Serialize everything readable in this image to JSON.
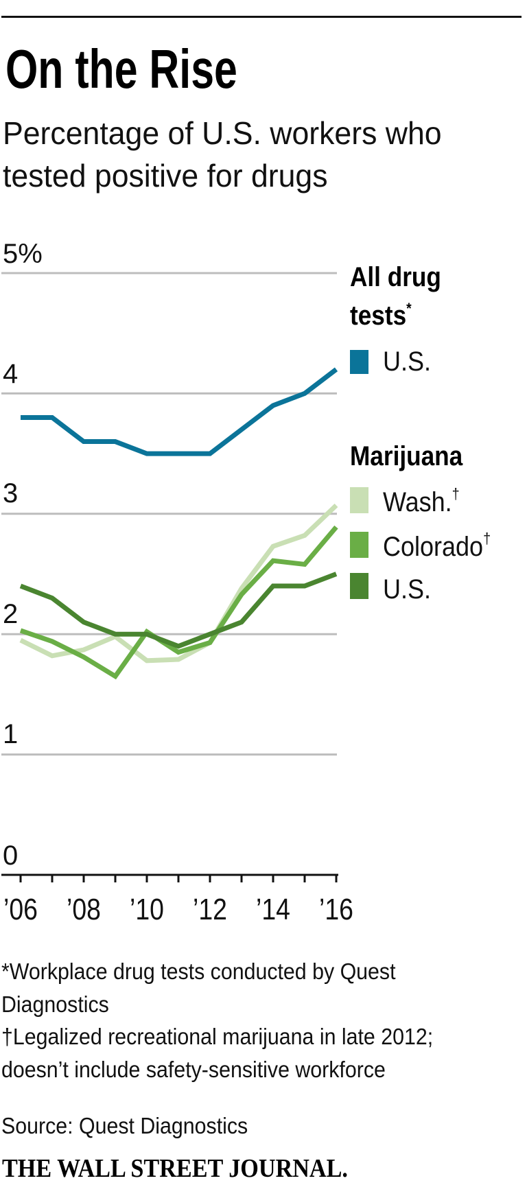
{
  "title": "On the Rise",
  "subtitle_lines": [
    "Percentage of U.S. workers who",
    "tested positive for drugs"
  ],
  "legend": {
    "group1_heading_line1": "All drug",
    "group1_heading_line2": "tests",
    "group1_heading_mark": "*",
    "group2_heading": "Marijuana",
    "items": [
      {
        "label": "U.S.",
        "mark": ""
      },
      {
        "label": "Wash.",
        "mark": "†"
      },
      {
        "label": "Colorado",
        "mark": "†"
      },
      {
        "label": "U.S.",
        "mark": ""
      }
    ]
  },
  "footnotes": [
    "*Workplace drug tests conducted by Quest",
    "Diagnostics",
    "†Legalized recreational marijuana in late 2012;",
    "doesn’t include safety-sensitive workforce"
  ],
  "source": "Source: Quest Diagnostics",
  "brand": "THE WALL STREET JOURNAL.",
  "chart_data": {
    "type": "line",
    "title": "On the Rise",
    "subtitle": "Percentage of U.S. workers who tested positive for drugs",
    "xlabel": "",
    "ylabel": "",
    "x": [
      2006,
      2007,
      2008,
      2009,
      2010,
      2011,
      2012,
      2013,
      2014,
      2015,
      2016
    ],
    "x_tick_labels": [
      "’06",
      "’08",
      "’10",
      "’12",
      "’14",
      "’16"
    ],
    "x_tick_label_years": [
      2006,
      2008,
      2010,
      2012,
      2014,
      2016
    ],
    "y_tick_labels": [
      "0",
      "1",
      "2",
      "3",
      "4",
      "5%"
    ],
    "y_ticks": [
      0,
      1,
      2,
      3,
      4,
      5
    ],
    "ylim": [
      0,
      5
    ],
    "xlim": [
      2006,
      2016
    ],
    "grid": "horizontal",
    "legend_position": "right",
    "series": [
      {
        "name": "U.S.",
        "group": "All drug tests",
        "color": "#0b7499",
        "values": [
          3.8,
          3.8,
          3.6,
          3.6,
          3.5,
          3.5,
          3.5,
          3.7,
          3.9,
          4.0,
          4.2
        ]
      },
      {
        "name": "Wash.",
        "group": "Marijuana",
        "color": "#c9dfb4",
        "values": [
          1.95,
          1.82,
          1.87,
          1.98,
          1.78,
          1.79,
          1.93,
          2.38,
          2.73,
          2.82,
          3.07
        ]
      },
      {
        "name": "Colorado",
        "group": "Marijuana",
        "color": "#6aae46",
        "values": [
          2.03,
          1.94,
          1.81,
          1.65,
          2.02,
          1.85,
          1.93,
          2.33,
          2.61,
          2.58,
          2.89
        ]
      },
      {
        "name": "U.S.",
        "group": "Marijuana",
        "color": "#4a8530",
        "values": [
          2.4,
          2.3,
          2.1,
          2.0,
          2.0,
          1.9,
          2.0,
          2.1,
          2.4,
          2.4,
          2.5
        ]
      }
    ]
  }
}
